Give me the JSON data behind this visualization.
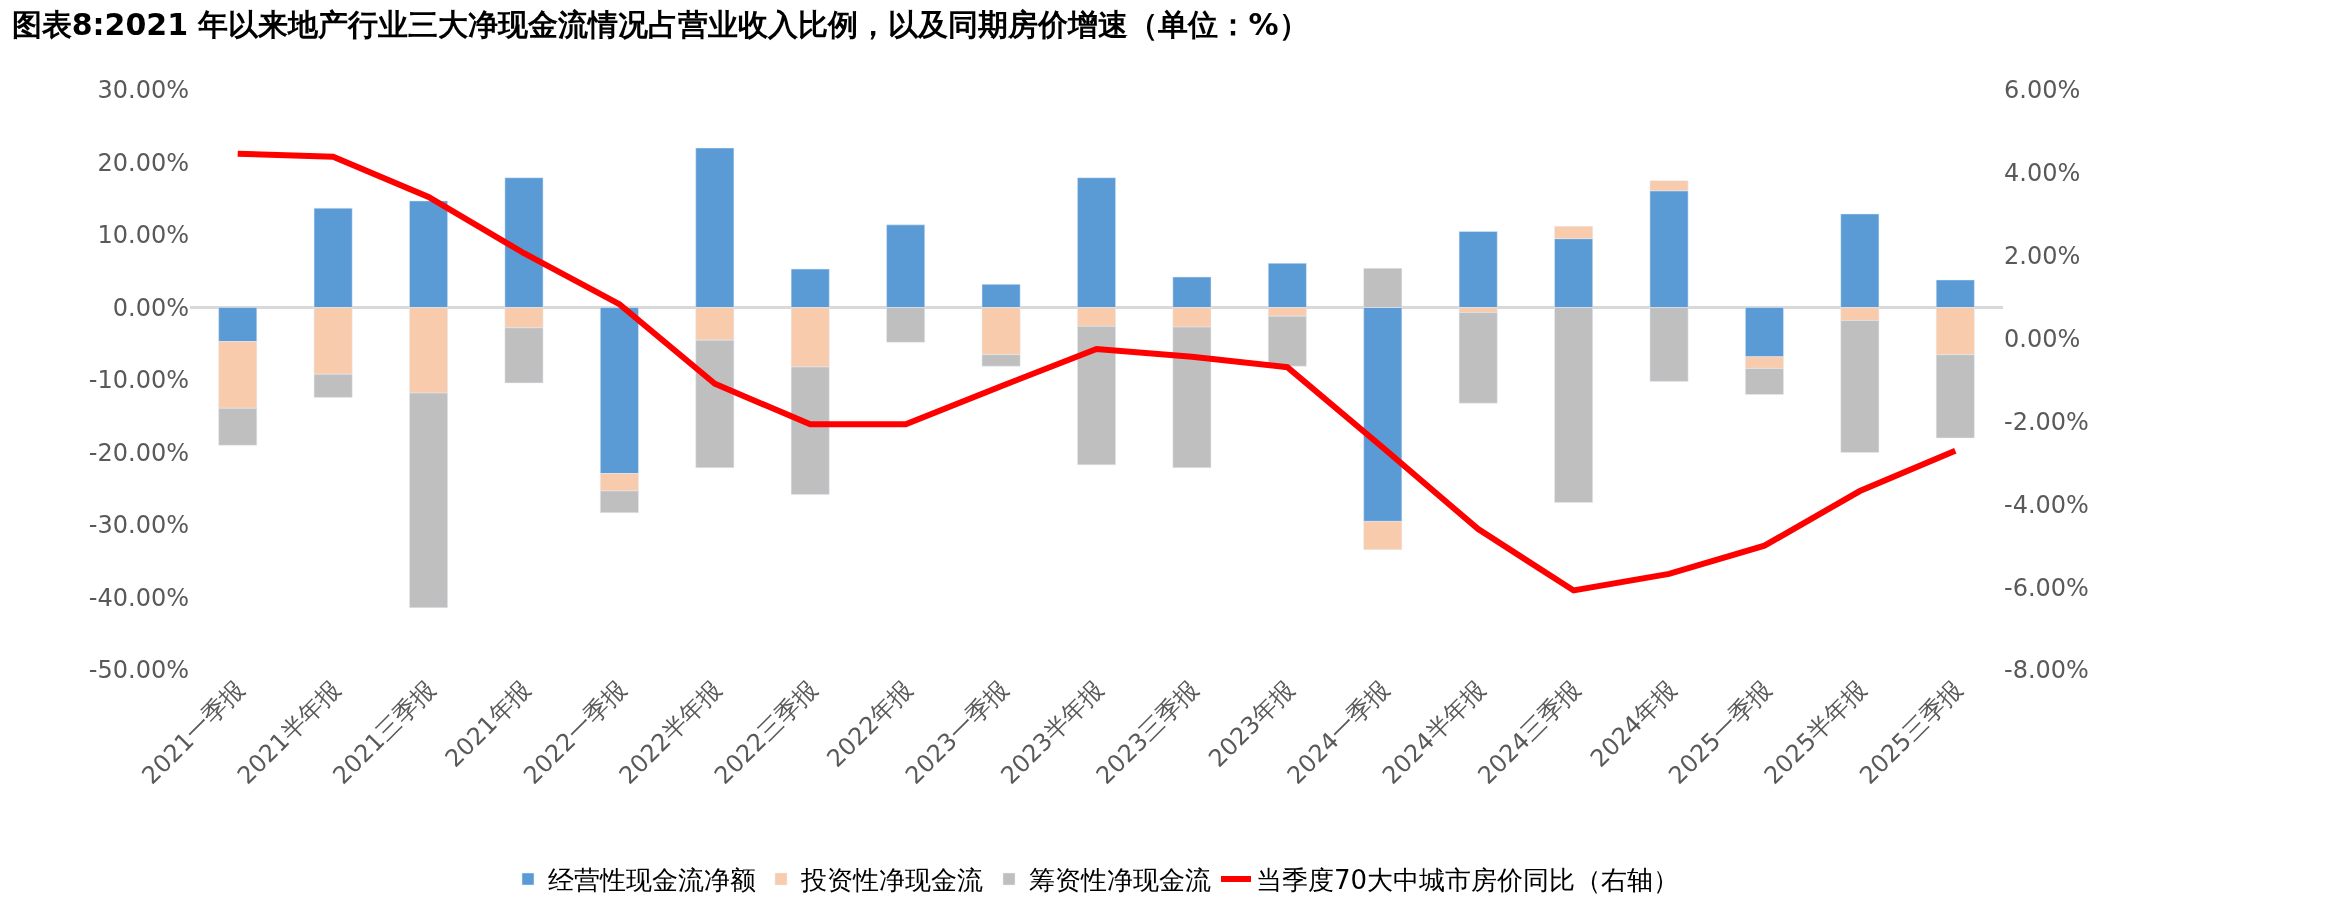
{
  "chart_data": {
    "type": "bar",
    "stacked": true,
    "title": "图表8:2021 年以来地产行业三大净现金流情况占营业收入比例，以及同期房价增速（单位：%）",
    "categories": [
      "2021一季报",
      "2021半年报",
      "2021三季报",
      "2021年报",
      "2022一季报",
      "2022半年报",
      "2022三季报",
      "2022年报",
      "2023一季报",
      "2023半年报",
      "2023三季报",
      "2023年报",
      "2024一季报",
      "2024半年报",
      "2024三季报",
      "2024年报",
      "2025一季报",
      "2025半年报",
      "2025三季报"
    ],
    "series": [
      {
        "name": "经营性现金流净额",
        "color": "#5b9bd5",
        "values": [
          -4.7,
          13.7,
          14.7,
          17.9,
          -22.9,
          22.0,
          5.3,
          11.4,
          3.2,
          17.9,
          4.2,
          6.1,
          -29.5,
          10.5,
          9.5,
          16.1,
          -6.8,
          12.9,
          3.8
        ]
      },
      {
        "name": "投资性净现金流",
        "color": "#f8cbad",
        "values": [
          -9.2,
          -9.2,
          -11.8,
          -2.8,
          -2.4,
          -4.5,
          -8.2,
          null,
          -6.5,
          -2.6,
          -2.7,
          -1.2,
          -3.9,
          -0.7,
          1.7,
          1.4,
          -1.6,
          -1.8,
          -6.5
        ]
      },
      {
        "name": "筹资性净现金流",
        "color": "#bfbfbf",
        "values": [
          -5.1,
          -3.2,
          -29.6,
          -7.6,
          -3.0,
          -17.6,
          -17.6,
          -4.8,
          -1.6,
          -19.1,
          -19.4,
          -6.9,
          5.4,
          -12.5,
          -26.9,
          -10.2,
          -3.6,
          -18.2,
          -11.5
        ]
      },
      {
        "name": "当季度70大中城市房价同比（右轴）",
        "color": "#ff0000",
        "type": "line",
        "axis": "y2",
        "values": [
          4.46,
          4.39,
          3.42,
          2.06,
          0.83,
          -1.09,
          -2.07,
          -2.07,
          -1.15,
          -0.25,
          -0.44,
          -0.69,
          -2.63,
          -4.6,
          -6.08,
          -5.68,
          -5.0,
          -3.68,
          -2.71
        ]
      }
    ],
    "ylim": [
      -50,
      30
    ],
    "yticks": [
      {
        "value": 30,
        "label": "30.00%"
      },
      {
        "value": 20,
        "label": "20.00%"
      },
      {
        "value": 10,
        "label": "10.00%"
      },
      {
        "value": 0,
        "label": "0.00%"
      },
      {
        "value": -10,
        "label": "-10.00%"
      },
      {
        "value": -20,
        "label": "-20.00%"
      },
      {
        "value": -30,
        "label": "-30.00%"
      },
      {
        "value": -40,
        "label": "-40.00%"
      },
      {
        "value": -50,
        "label": "-50.00%"
      }
    ],
    "y2lim": [
      -8,
      6
    ],
    "y2ticks": [
      {
        "value": 6,
        "label": "6.00%"
      },
      {
        "value": 4,
        "label": "4.00%"
      },
      {
        "value": 2,
        "label": "2.00%"
      },
      {
        "value": 0,
        "label": "0.00%"
      },
      {
        "value": -2,
        "label": "-2.00%"
      },
      {
        "value": -4,
        "label": "-4.00%"
      },
      {
        "value": -6,
        "label": "-6.00%"
      },
      {
        "value": -8,
        "label": "-8.00%"
      }
    ],
    "ref_lines": [
      {
        "axis": "y",
        "value": 0,
        "color": "#d9d9d9"
      }
    ],
    "grid": false,
    "legend": "bottom"
  }
}
